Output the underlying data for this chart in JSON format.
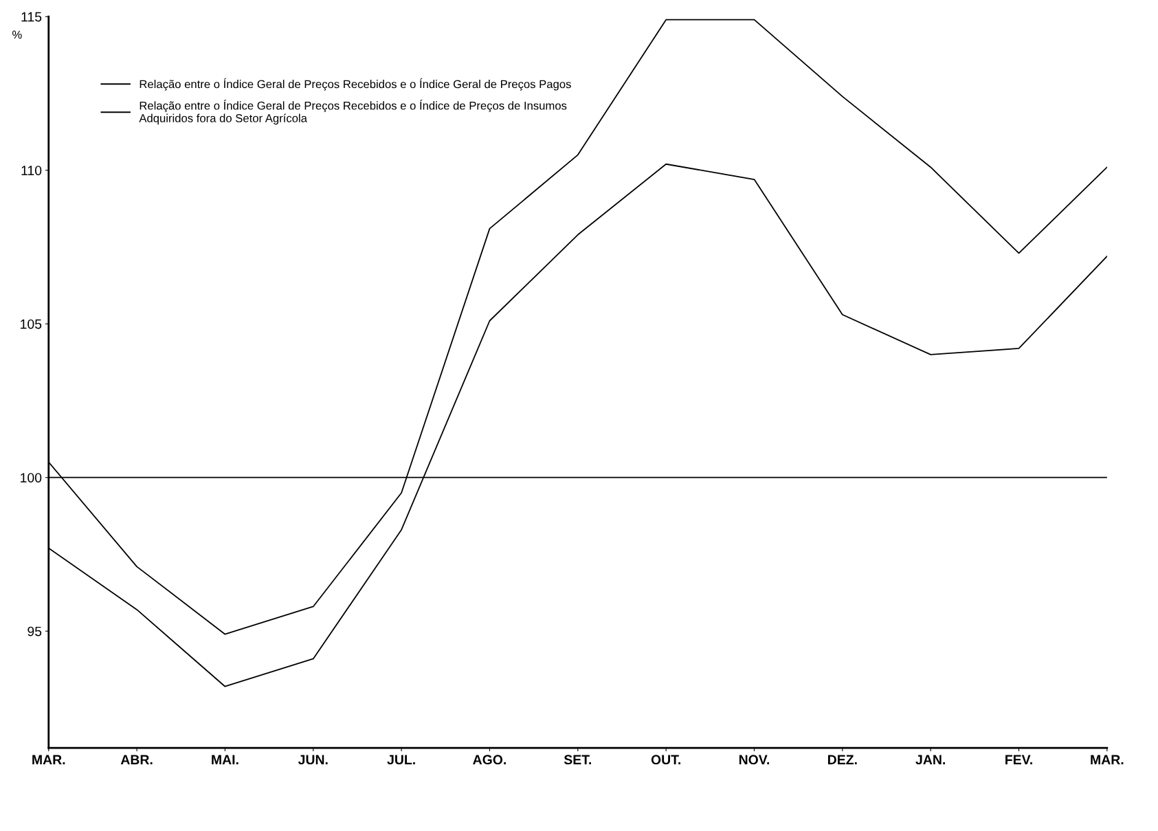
{
  "chart_data": {
    "type": "line",
    "ylabel": "%",
    "categories": [
      "MAR.",
      "ABR.",
      "MAI.",
      "JUN.",
      "JUL.",
      "AGO.",
      "SET.",
      "OUT.",
      "NOV.",
      "DEZ.",
      "JAN.",
      "FEV.",
      "MAR."
    ],
    "series": [
      {
        "name": "Relação entre o Índice Geral de Preços Recebidos e o Índice Geral de Preços Pagos",
        "color": "#000000",
        "values": [
          100.5,
          97.1,
          94.9,
          95.8,
          99.5,
          108.1,
          110.5,
          114.9,
          114.9,
          112.4,
          110.1,
          107.3,
          110.1
        ]
      },
      {
        "name": "Relação entre o Índice Geral de Preços Recebidos e o Índice de Preços de Insumos\nAdquiridos fora do Setor Agrícola",
        "color": "#000000",
        "values": [
          97.7,
          95.7,
          93.2,
          94.1,
          98.3,
          105.1,
          107.9,
          110.2,
          109.7,
          105.3,
          104.0,
          104.2,
          107.2
        ]
      }
    ],
    "ylim": [
      91.2,
      115
    ],
    "yticks": [
      95,
      100,
      105,
      110,
      115
    ],
    "ref_lines": [
      {
        "axis": "y",
        "value": 100,
        "color": "#000000"
      }
    ],
    "grid": false,
    "legend": "top left",
    "marker": "none",
    "line_style": "solid"
  }
}
